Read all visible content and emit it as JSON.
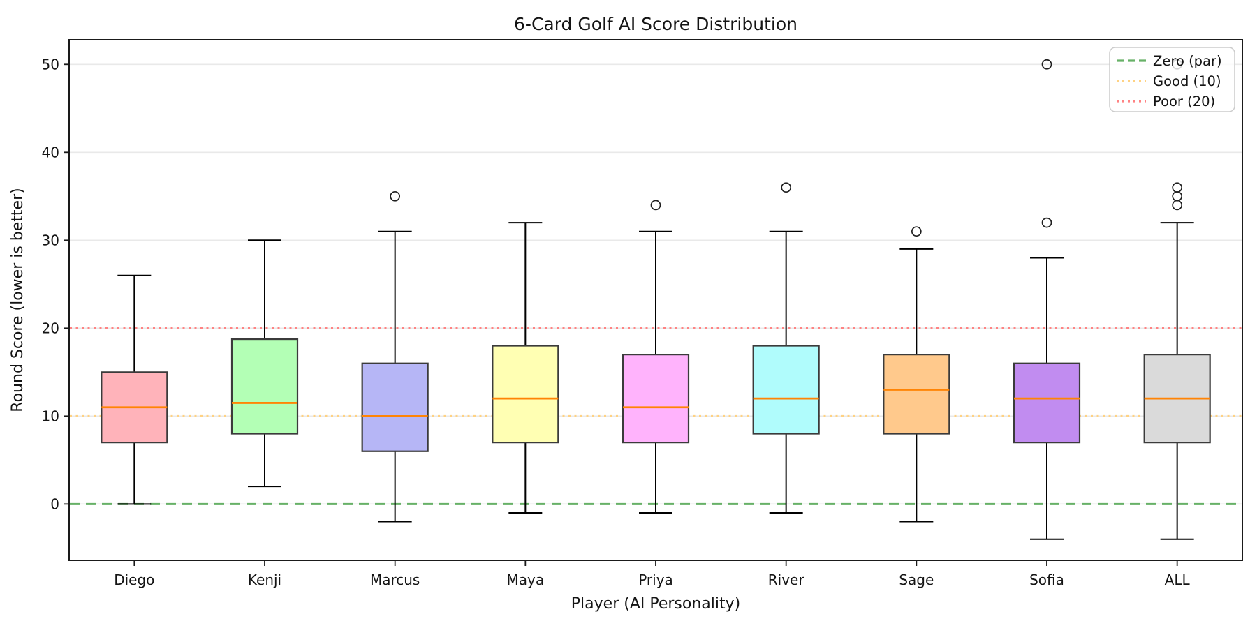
{
  "chart_data": {
    "type": "boxplot",
    "title": "6-Card Golf AI Score Distribution",
    "xlabel": "Player (AI Personality)",
    "ylabel": "Round Score (lower is better)",
    "categories": [
      "Diego",
      "Kenji",
      "Marcus",
      "Maya",
      "Priya",
      "River",
      "Sage",
      "Sofia",
      "ALL"
    ],
    "yticks": [
      0,
      10,
      20,
      30,
      40,
      50
    ],
    "ylim": [
      -6.4,
      52.8
    ],
    "grid": true,
    "legend_position": "upper right",
    "series": [
      {
        "name": "Diego",
        "color": "#ffb3ba",
        "whislo": 0,
        "q1": 7,
        "med": 11,
        "q3": 15,
        "whishi": 26,
        "fliers": []
      },
      {
        "name": "Kenji",
        "color": "#b3ffb5",
        "whislo": 2,
        "q1": 8,
        "med": 11.5,
        "q3": 18.75,
        "whishi": 30,
        "fliers": []
      },
      {
        "name": "Marcus",
        "color": "#b6b6f6",
        "whislo": -2,
        "q1": 6,
        "med": 10,
        "q3": 16,
        "whishi": 31,
        "fliers": [
          35
        ]
      },
      {
        "name": "Maya",
        "color": "#ffffb3",
        "whislo": -1,
        "q1": 7,
        "med": 12,
        "q3": 18,
        "whishi": 32,
        "fliers": []
      },
      {
        "name": "Priya",
        "color": "#ffb3fc",
        "whislo": -1,
        "q1": 7,
        "med": 11,
        "q3": 17,
        "whishi": 31,
        "fliers": [
          34
        ]
      },
      {
        "name": "River",
        "color": "#b0fcfc",
        "whislo": -1,
        "q1": 8,
        "med": 12,
        "q3": 18,
        "whishi": 31,
        "fliers": [
          36
        ]
      },
      {
        "name": "Sage",
        "color": "#ffc98c",
        "whislo": -2,
        "q1": 8,
        "med": 13,
        "q3": 17,
        "whishi": 29,
        "fliers": [
          31
        ]
      },
      {
        "name": "Sofia",
        "color": "#c18cf0",
        "whislo": -4,
        "q1": 7,
        "med": 12,
        "q3": 16,
        "whishi": 28,
        "fliers": [
          32,
          50
        ]
      },
      {
        "name": "ALL",
        "color": "#dadada",
        "whislo": -4,
        "q1": 7,
        "med": 12,
        "q3": 17,
        "whishi": 32,
        "fliers": [
          34,
          35,
          36,
          50
        ]
      }
    ],
    "reference_lines": [
      {
        "label": "Zero (par)",
        "value": 0,
        "color": "#67b167",
        "style": "dashed"
      },
      {
        "label": "Good (10)",
        "value": 10,
        "color": "#ffd283",
        "style": "dotted"
      },
      {
        "label": "Poor (20)",
        "value": 20,
        "color": "#ff8383",
        "style": "dotted"
      }
    ],
    "style": {
      "median_color": "#ff8405",
      "box_edge_color": "#3b3b3b",
      "whisker_color": "#000000",
      "flier_edge_color": "#1f1f1f",
      "grid_color": "#e9e9e9",
      "spine_color": "#1a1a1a",
      "legend_border_color": "#cccccc",
      "legend_background": "#ffffff"
    }
  }
}
